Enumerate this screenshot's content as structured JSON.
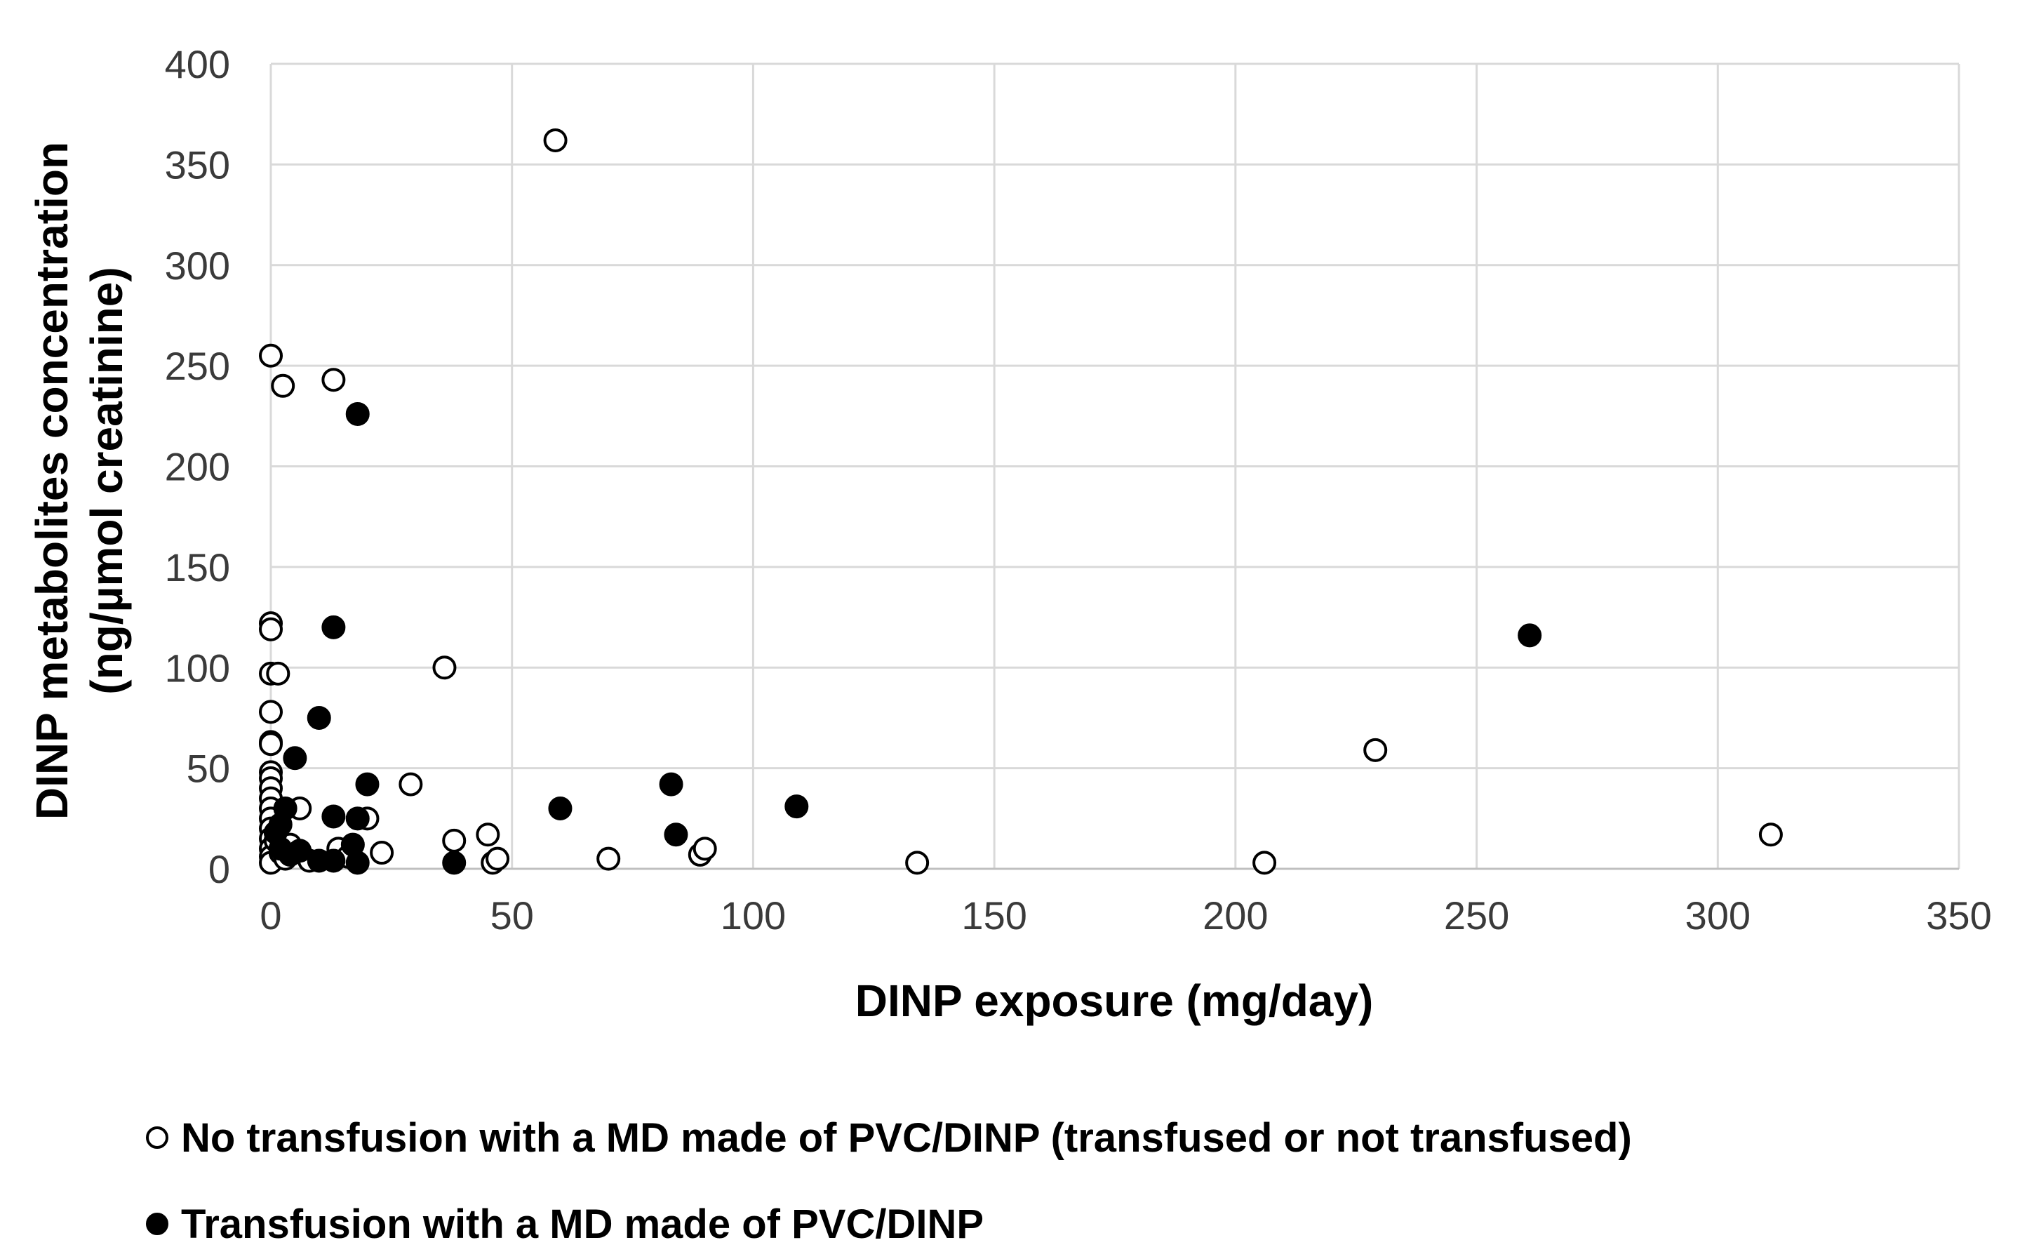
{
  "chart_data": {
    "type": "scatter",
    "title": "",
    "xlabel": "DINP exposure (mg/day)",
    "ylabel_line1": "DINP metabolites  concentration",
    "ylabel_line2": "(ng/µmol creatinine)",
    "xlim": [
      0,
      350
    ],
    "ylim": [
      0,
      400
    ],
    "xticks": [
      0,
      50,
      100,
      150,
      200,
      250,
      300,
      350
    ],
    "yticks": [
      0,
      50,
      100,
      150,
      200,
      250,
      300,
      350,
      400
    ],
    "grid": true,
    "legend_position": "bottom",
    "series": [
      {
        "name": "No transfusion with a MD made of PVC/DINP (transfused or not transfused)",
        "marker": "open-circle",
        "color": "#000000",
        "points": [
          [
            0,
            255
          ],
          [
            2.5,
            240
          ],
          [
            13,
            243
          ],
          [
            59,
            362
          ],
          [
            0,
            122
          ],
          [
            0,
            119
          ],
          [
            0,
            97
          ],
          [
            1.5,
            97
          ],
          [
            36,
            100
          ],
          [
            0,
            78
          ],
          [
            0,
            63
          ],
          [
            0,
            62
          ],
          [
            0,
            48
          ],
          [
            0,
            45
          ],
          [
            0,
            40
          ],
          [
            0,
            35
          ],
          [
            0,
            30
          ],
          [
            0,
            25
          ],
          [
            0,
            20
          ],
          [
            0,
            15
          ],
          [
            0,
            10
          ],
          [
            0,
            6
          ],
          [
            0,
            3
          ],
          [
            1,
            14
          ],
          [
            2,
            8
          ],
          [
            3,
            5
          ],
          [
            4,
            12
          ],
          [
            6,
            30
          ],
          [
            8,
            4
          ],
          [
            14,
            10
          ],
          [
            16,
            6
          ],
          [
            20,
            25
          ],
          [
            23,
            8
          ],
          [
            29,
            42
          ],
          [
            38,
            14
          ],
          [
            45,
            17
          ],
          [
            46,
            3
          ],
          [
            47,
            5
          ],
          [
            70,
            5
          ],
          [
            89,
            7
          ],
          [
            90,
            10
          ],
          [
            134,
            3
          ],
          [
            206,
            3
          ],
          [
            229,
            59
          ],
          [
            311,
            17
          ]
        ]
      },
      {
        "name": "Transfusion with a MD made of PVC/DINP",
        "marker": "filled-circle",
        "color": "#000000",
        "points": [
          [
            18,
            226
          ],
          [
            13,
            120
          ],
          [
            10,
            75
          ],
          [
            5,
            55
          ],
          [
            20,
            42
          ],
          [
            13,
            26
          ],
          [
            18,
            25
          ],
          [
            3,
            30
          ],
          [
            2,
            22
          ],
          [
            1,
            18
          ],
          [
            2,
            10
          ],
          [
            4,
            7
          ],
          [
            6,
            9
          ],
          [
            10,
            4
          ],
          [
            13,
            4
          ],
          [
            17,
            12
          ],
          [
            18,
            3
          ],
          [
            38,
            3
          ],
          [
            60,
            30
          ],
          [
            83,
            42
          ],
          [
            84,
            17
          ],
          [
            109,
            31
          ],
          [
            261,
            116
          ]
        ]
      }
    ]
  }
}
